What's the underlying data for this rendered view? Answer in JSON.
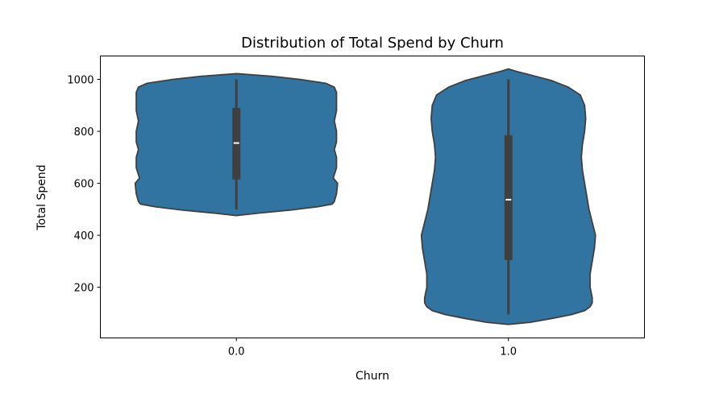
{
  "chart_data": {
    "type": "violin",
    "title": "Distribution of Total Spend by Churn",
    "xlabel": "Churn",
    "ylabel": "Total Spend",
    "categories": [
      "0.0",
      "1.0"
    ],
    "ylim": [
      5,
      1090
    ],
    "yticks": [
      200,
      400,
      600,
      800,
      1000
    ],
    "grid": false,
    "legend": "none",
    "colors": {
      "body": "#3274a1",
      "edge": "#3f3f3f",
      "box": "#3f3f3f",
      "median": "#ffffff"
    },
    "violins": [
      {
        "category": "0.0",
        "whisker": [
          500,
          1000
        ],
        "quartiles": [
          615,
          890
        ],
        "median": 755,
        "density": [
          [
            476,
            0.0
          ],
          [
            485,
            0.2
          ],
          [
            497,
            0.5
          ],
          [
            510,
            0.75
          ],
          [
            520,
            0.88
          ],
          [
            530,
            0.9
          ],
          [
            560,
            0.92
          ],
          [
            600,
            0.93
          ],
          [
            620,
            0.89
          ],
          [
            660,
            0.92
          ],
          [
            700,
            0.92
          ],
          [
            730,
            0.9
          ],
          [
            760,
            0.92
          ],
          [
            800,
            0.92
          ],
          [
            840,
            0.9
          ],
          [
            880,
            0.92
          ],
          [
            920,
            0.92
          ],
          [
            950,
            0.92
          ],
          [
            970,
            0.9
          ],
          [
            985,
            0.82
          ],
          [
            1000,
            0.58
          ],
          [
            1012,
            0.32
          ],
          [
            1022,
            0.0
          ]
        ]
      },
      {
        "category": "1.0",
        "whisker": [
          95,
          1000
        ],
        "quartiles": [
          305,
          785
        ],
        "median": 537,
        "density": [
          [
            57,
            0.0
          ],
          [
            65,
            0.2
          ],
          [
            80,
            0.4
          ],
          [
            95,
            0.58
          ],
          [
            110,
            0.7
          ],
          [
            125,
            0.75
          ],
          [
            140,
            0.77
          ],
          [
            160,
            0.77
          ],
          [
            200,
            0.75
          ],
          [
            250,
            0.75
          ],
          [
            300,
            0.77
          ],
          [
            350,
            0.79
          ],
          [
            400,
            0.8
          ],
          [
            450,
            0.77
          ],
          [
            500,
            0.74
          ],
          [
            550,
            0.72
          ],
          [
            600,
            0.7
          ],
          [
            650,
            0.68
          ],
          [
            700,
            0.67
          ],
          [
            750,
            0.68
          ],
          [
            800,
            0.7
          ],
          [
            850,
            0.71
          ],
          [
            900,
            0.7
          ],
          [
            940,
            0.66
          ],
          [
            970,
            0.55
          ],
          [
            995,
            0.4
          ],
          [
            1015,
            0.22
          ],
          [
            1030,
            0.08
          ],
          [
            1040,
            0.0
          ]
        ]
      }
    ]
  }
}
